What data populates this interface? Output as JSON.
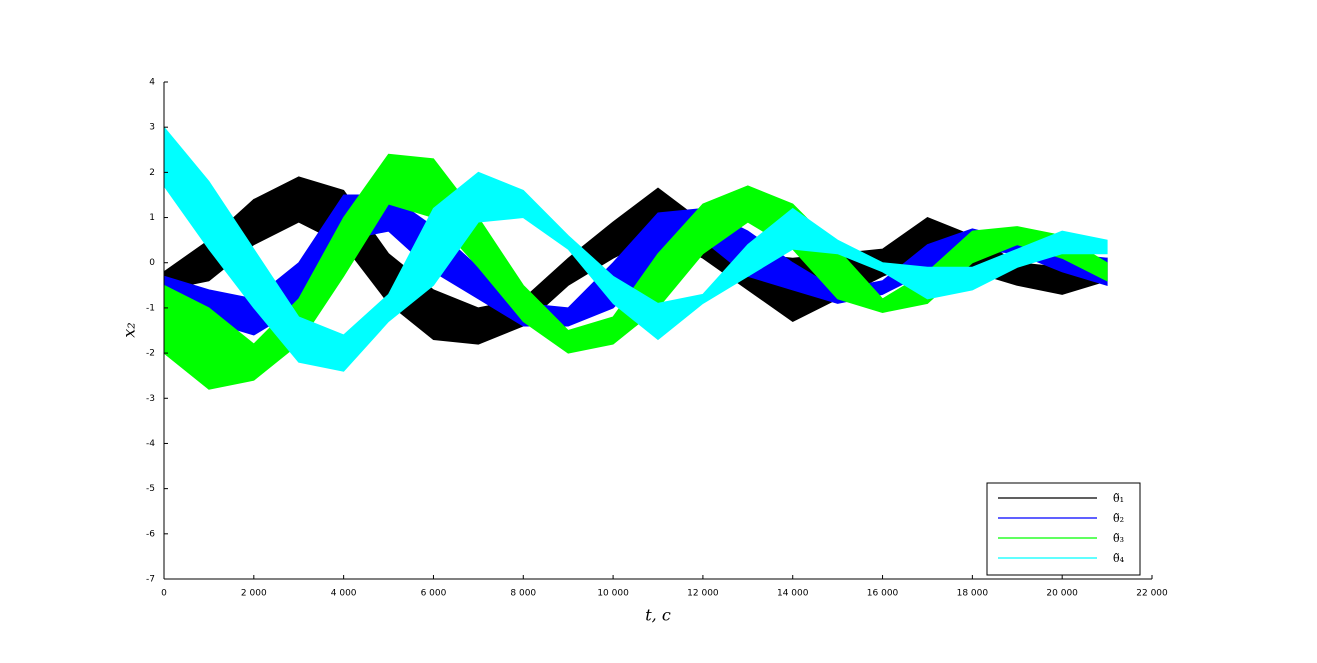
{
  "chart_data": {
    "type": "band",
    "xlabel": "t,  c",
    "ylabel": "x₂",
    "x": [
      0,
      1000,
      2000,
      3000,
      4000,
      5000,
      6000,
      7000,
      8000,
      9000,
      10000,
      11000,
      12000,
      13000,
      14000,
      15000,
      16000,
      17000,
      18000,
      19000,
      20000,
      21000
    ],
    "series": [
      {
        "name": "θ̃₁",
        "color": "#000000",
        "upper": [
          -0.2,
          0.5,
          1.4,
          1.9,
          1.6,
          0.2,
          -0.6,
          -1.0,
          -0.8,
          0.1,
          0.9,
          1.65,
          0.9,
          0.2,
          0.1,
          0.2,
          0.3,
          1.0,
          0.6,
          0.0,
          -0.1,
          0.1
        ],
        "lower": [
          -0.6,
          -0.4,
          0.4,
          0.9,
          0.4,
          -0.9,
          -1.7,
          -1.8,
          -1.4,
          -0.5,
          0.1,
          0.6,
          0.1,
          -0.6,
          -1.3,
          -0.8,
          -0.3,
          0.1,
          -0.2,
          -0.5,
          -0.7,
          -0.4
        ]
      },
      {
        "name": "θ̃₂",
        "color": "#0000ff",
        "upper": [
          -0.3,
          -0.6,
          -0.8,
          0.0,
          1.5,
          1.5,
          0.8,
          -0.1,
          -0.9,
          -1.0,
          0.0,
          1.1,
          1.2,
          0.7,
          0.0,
          -0.6,
          -0.4,
          0.4,
          0.75,
          0.5,
          0.2,
          0.1
        ],
        "lower": [
          -2.0,
          -1.3,
          -1.6,
          -1.0,
          0.5,
          0.7,
          -0.2,
          -0.8,
          -1.4,
          -1.4,
          -1.0,
          0.0,
          0.5,
          -0.3,
          -0.6,
          -0.9,
          -0.7,
          -0.2,
          0.3,
          0.2,
          -0.2,
          -0.5
        ]
      },
      {
        "name": "θ̃₃",
        "color": "#00ff00",
        "upper": [
          -0.5,
          -1.0,
          -1.8,
          -0.8,
          1.0,
          2.4,
          2.3,
          1.0,
          -0.5,
          -1.5,
          -1.2,
          0.2,
          1.3,
          1.7,
          1.3,
          0.3,
          -0.8,
          -0.2,
          0.7,
          0.8,
          0.6,
          0.0
        ],
        "lower": [
          -2.0,
          -2.8,
          -2.6,
          -1.8,
          -0.3,
          1.3,
          1.0,
          -0.1,
          -1.3,
          -2.0,
          -1.8,
          -1.0,
          0.2,
          0.9,
          0.3,
          -0.8,
          -1.1,
          -0.9,
          0.0,
          0.4,
          0.1,
          -0.4
        ]
      },
      {
        "name": "θ̃₄",
        "color": "#00ffff",
        "upper": [
          3.0,
          1.8,
          0.3,
          -1.2,
          -1.6,
          -0.7,
          1.2,
          2.0,
          1.6,
          0.6,
          -0.3,
          -0.9,
          -0.7,
          0.4,
          1.2,
          0.5,
          0.0,
          -0.1,
          -0.1,
          0.3,
          0.7,
          0.5
        ],
        "lower": [
          1.7,
          0.3,
          -1.0,
          -2.2,
          -2.4,
          -1.3,
          -0.5,
          0.9,
          1.0,
          0.3,
          -0.9,
          -1.7,
          -0.9,
          -0.3,
          0.3,
          0.2,
          -0.2,
          -0.8,
          -0.6,
          -0.1,
          0.2,
          0.2
        ]
      }
    ],
    "xlim": [
      0,
      22000
    ],
    "xticks": [
      0,
      {
        "value": 2000,
        "label": "2 000"
      },
      {
        "value": 4000,
        "label": "4 000"
      },
      {
        "value": 6000,
        "label": "6 000"
      },
      {
        "value": 8000,
        "label": "8 000"
      },
      {
        "value": 10000,
        "label": "10 000"
      },
      {
        "value": 12000,
        "label": "12 000"
      },
      {
        "value": 14000,
        "label": "14 000"
      },
      {
        "value": 16000,
        "label": "16 000"
      },
      {
        "value": 18000,
        "label": "18 000"
      },
      {
        "value": 20000,
        "label": "20 000"
      },
      {
        "value": 22000,
        "label": "22 000"
      }
    ],
    "ylim": [
      -7,
      4
    ],
    "yticks": [
      -7,
      -6,
      -5,
      -4,
      -3,
      -2,
      -1,
      0,
      1,
      2,
      3,
      4
    ],
    "legend": "lower-right"
  }
}
